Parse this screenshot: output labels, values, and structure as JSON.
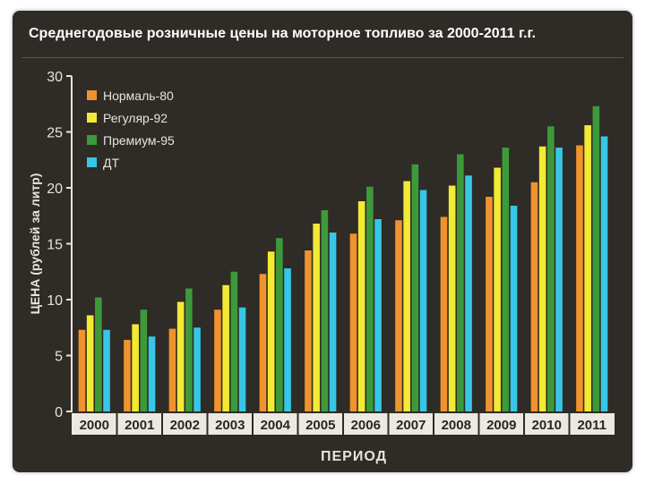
{
  "chart_data": {
    "type": "bar",
    "title": "Среднегодовые розничные цены на моторное топливо за 2000-2011 г.г.",
    "xlabel": "ПЕРИОД",
    "ylabel": "ЦЕНА (рублей за литр)",
    "ylim": [
      0,
      30
    ],
    "yticks": [
      "0",
      "5",
      "10",
      "15",
      "20",
      "25",
      "30"
    ],
    "grid": false,
    "legend_position": "top-left",
    "categories": [
      "2000",
      "2001",
      "2002",
      "2003",
      "2004",
      "2005",
      "2006",
      "2007",
      "2008",
      "2009",
      "2010",
      "2011"
    ],
    "series": [
      {
        "name": "Нормаль-80",
        "color": "#f0922e",
        "values": [
          7.3,
          6.4,
          7.4,
          9.1,
          12.3,
          14.4,
          15.9,
          17.1,
          17.4,
          19.2,
          20.5,
          23.8
        ]
      },
      {
        "name": "Регуляр-92",
        "color": "#f2ea33",
        "values": [
          8.6,
          7.8,
          9.8,
          11.3,
          14.3,
          16.8,
          18.8,
          20.6,
          20.2,
          21.8,
          23.7,
          25.6
        ]
      },
      {
        "name": "Премиум-95",
        "color": "#3d9a3a",
        "values": [
          10.2,
          9.1,
          11.0,
          12.5,
          15.5,
          18.0,
          20.1,
          22.1,
          23.0,
          23.6,
          25.5,
          27.3
        ]
      },
      {
        "name": "ДТ",
        "color": "#38c6e6",
        "values": [
          7.3,
          6.7,
          7.5,
          9.3,
          12.8,
          16.0,
          17.2,
          19.8,
          21.1,
          18.4,
          23.6,
          24.6
        ]
      }
    ]
  }
}
